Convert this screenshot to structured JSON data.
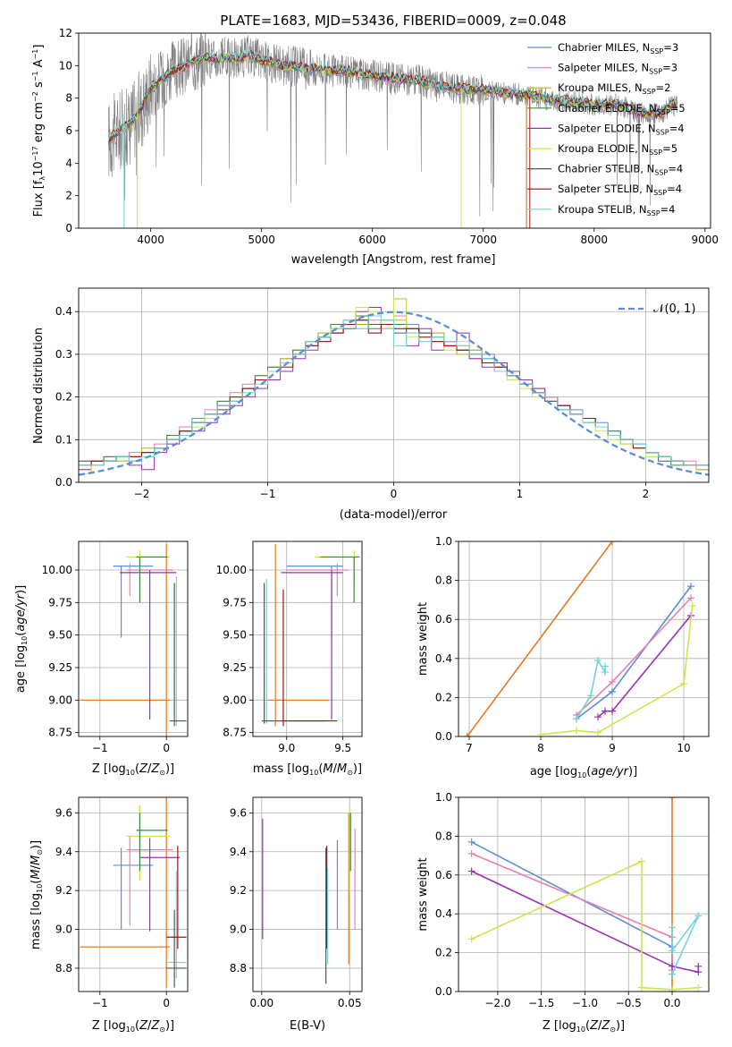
{
  "title": "PLATE=1683, MJD=53436, FIBERID=0009, z=0.048",
  "colors": {
    "Chabrier MILES": "#5b8ed6",
    "Salpeter MILES": "#e87fb0",
    "Kroupa MILES": "#b5b520",
    "Chabrier ELODIE": "#3a8a3a",
    "Salpeter ELODIE": "#9b2fb5",
    "Kroupa ELODIE": "#c8e84a",
    "Chabrier STELIB": "#555555",
    "Salpeter STELIB": "#a01010",
    "Kroupa STELIB": "#6fd6d6",
    "data": "#808080",
    "orange": "#e07b20"
  },
  "chart_data": [
    {
      "type": "line",
      "title": "PLATE=1683, MJD=53436, FIBERID=0009, z=0.048",
      "xlabel": "wavelength [Angstrom, rest frame]",
      "ylabel": "Flux [f_λ 10^-17 erg cm^-2 s^-1 A^-1]",
      "xlim": [
        3350,
        9050
      ],
      "ylim": [
        0,
        12
      ],
      "xticks": [
        "4000",
        "5000",
        "6000",
        "7000",
        "8000",
        "9000"
      ],
      "yticks": [
        "0",
        "2",
        "4",
        "6",
        "8",
        "10",
        "12"
      ],
      "legend_position": "top-right",
      "legend": [
        {
          "label": "Chabrier MILES, N",
          "sub": "SSP",
          "suffix": "=3"
        },
        {
          "label": "Salpeter MILES, N",
          "sub": "SSP",
          "suffix": "=3"
        },
        {
          "label": "Kroupa MILES, N",
          "sub": "SSP",
          "suffix": "=2"
        },
        {
          "label": "Chabrier ELODIE, N",
          "sub": "SSP",
          "suffix": "=5"
        },
        {
          "label": "Salpeter ELODIE, N",
          "sub": "SSP",
          "suffix": "=4"
        },
        {
          "label": "Kroupa ELODIE, N",
          "sub": "SSP",
          "suffix": "=5"
        },
        {
          "label": "Chabrier STELIB, N",
          "sub": "SSP",
          "suffix": "=4"
        },
        {
          "label": "Salpeter STELIB, N",
          "sub": "SSP",
          "suffix": "=4"
        },
        {
          "label": "Kroupa STELIB, N",
          "sub": "SSP",
          "suffix": "=4"
        }
      ],
      "model_continuum": [
        [
          3620,
          5.4
        ],
        [
          3700,
          5.9
        ],
        [
          3800,
          6.3
        ],
        [
          3900,
          7.2
        ],
        [
          4000,
          8.6
        ],
        [
          4100,
          9.2
        ],
        [
          4200,
          9.7
        ],
        [
          4300,
          9.9
        ],
        [
          4400,
          10.3
        ],
        [
          4500,
          10.5
        ],
        [
          4600,
          10.4
        ],
        [
          4700,
          10.5
        ],
        [
          4800,
          10.4
        ],
        [
          4900,
          10.7
        ],
        [
          5000,
          10.3
        ],
        [
          5100,
          10.2
        ],
        [
          5200,
          9.9
        ],
        [
          5300,
          10.0
        ],
        [
          5400,
          9.8
        ],
        [
          5500,
          9.9
        ],
        [
          5600,
          9.7
        ],
        [
          5800,
          9.6
        ],
        [
          6000,
          9.4
        ],
        [
          6200,
          9.2
        ],
        [
          6400,
          9.1
        ],
        [
          6600,
          8.7
        ],
        [
          6800,
          8.6
        ],
        [
          7000,
          8.5
        ],
        [
          7200,
          8.3
        ],
        [
          7400,
          8.2
        ],
        [
          7600,
          7.9
        ],
        [
          7800,
          7.8
        ],
        [
          8000,
          7.6
        ],
        [
          8200,
          7.6
        ],
        [
          8400,
          7.1
        ],
        [
          8600,
          7.0
        ],
        [
          8700,
          7.6
        ]
      ]
    },
    {
      "type": "step",
      "xlabel": "(data-model)/error",
      "ylabel": "Normed distribution",
      "xlim": [
        -2.5,
        2.5
      ],
      "ylim": [
        0,
        0.455
      ],
      "xticks": [
        "−2",
        "−1",
        "0",
        "1",
        "2"
      ],
      "yticks": [
        "0.0",
        "0.1",
        "0.2",
        "0.3",
        "0.4"
      ],
      "legend": "𝒩(0, 1)",
      "legend_position": "top-right",
      "bins_start": -2.5,
      "bin_width": 0.1,
      "series_values": [
        [
          0.04,
          0.04,
          0.06,
          0.06,
          0.05,
          0.07,
          0.08,
          0.1,
          0.12,
          0.15,
          0.16,
          0.18,
          0.2,
          0.22,
          0.24,
          0.26,
          0.28,
          0.3,
          0.33,
          0.34,
          0.36,
          0.37,
          0.38,
          0.35,
          0.37,
          0.36,
          0.37,
          0.35,
          0.34,
          0.33,
          0.32,
          0.31,
          0.3,
          0.27,
          0.26,
          0.24,
          0.22,
          0.2,
          0.18,
          0.17,
          0.15,
          0.14,
          0.12,
          0.1,
          0.09,
          0.07,
          0.06,
          0.05,
          0.04,
          0.04
        ],
        [
          0.05,
          0.05,
          0.05,
          0.06,
          0.07,
          0.07,
          0.09,
          0.11,
          0.13,
          0.14,
          0.17,
          0.19,
          0.21,
          0.23,
          0.25,
          0.27,
          0.29,
          0.31,
          0.32,
          0.35,
          0.37,
          0.38,
          0.36,
          0.38,
          0.36,
          0.39,
          0.36,
          0.33,
          0.35,
          0.32,
          0.31,
          0.29,
          0.28,
          0.28,
          0.25,
          0.23,
          0.21,
          0.19,
          0.18,
          0.16,
          0.14,
          0.13,
          0.11,
          0.1,
          0.08,
          0.07,
          0.06,
          0.05,
          0.05,
          0.03
        ],
        [
          0.03,
          0.05,
          0.05,
          0.05,
          0.06,
          0.08,
          0.08,
          0.1,
          0.12,
          0.14,
          0.16,
          0.18,
          0.19,
          0.22,
          0.24,
          0.27,
          0.29,
          0.3,
          0.33,
          0.35,
          0.36,
          0.38,
          0.37,
          0.37,
          0.37,
          0.38,
          0.35,
          0.34,
          0.35,
          0.33,
          0.3,
          0.31,
          0.29,
          0.27,
          0.25,
          0.23,
          0.21,
          0.2,
          0.17,
          0.16,
          0.15,
          0.13,
          0.11,
          0.1,
          0.08,
          0.07,
          0.06,
          0.05,
          0.04,
          0.04
        ],
        [
          0.04,
          0.05,
          0.06,
          0.05,
          0.06,
          0.07,
          0.08,
          0.11,
          0.12,
          0.14,
          0.16,
          0.19,
          0.2,
          0.22,
          0.25,
          0.27,
          0.28,
          0.31,
          0.33,
          0.34,
          0.37,
          0.37,
          0.39,
          0.36,
          0.38,
          0.37,
          0.36,
          0.35,
          0.34,
          0.32,
          0.31,
          0.3,
          0.28,
          0.26,
          0.26,
          0.23,
          0.21,
          0.19,
          0.18,
          0.16,
          0.14,
          0.13,
          0.12,
          0.1,
          0.08,
          0.07,
          0.06,
          0.04,
          0.04,
          0.03
        ],
        [
          0.03,
          0.04,
          0.05,
          0.06,
          0.04,
          0.03,
          0.07,
          0.09,
          0.11,
          0.12,
          0.14,
          0.16,
          0.18,
          0.2,
          0.22,
          0.24,
          0.26,
          0.29,
          0.31,
          0.33,
          0.35,
          0.37,
          0.4,
          0.41,
          0.36,
          0.43,
          0.32,
          0.36,
          0.31,
          0.33,
          0.35,
          0.29,
          0.27,
          0.28,
          0.26,
          0.24,
          0.22,
          0.2,
          0.18,
          0.16,
          0.15,
          0.13,
          0.11,
          0.09,
          0.08,
          0.07,
          0.06,
          0.05,
          0.04,
          0.03
        ],
        [
          0.02,
          0.04,
          0.05,
          0.05,
          0.06,
          0.06,
          0.08,
          0.1,
          0.11,
          0.13,
          0.15,
          0.17,
          0.2,
          0.21,
          0.24,
          0.26,
          0.28,
          0.3,
          0.32,
          0.34,
          0.36,
          0.38,
          0.41,
          0.4,
          0.36,
          0.43,
          0.34,
          0.34,
          0.33,
          0.31,
          0.33,
          0.3,
          0.29,
          0.27,
          0.24,
          0.22,
          0.2,
          0.19,
          0.17,
          0.16,
          0.14,
          0.12,
          0.1,
          0.09,
          0.08,
          0.06,
          0.06,
          0.05,
          0.04,
          0.03
        ],
        [
          0.05,
          0.05,
          0.05,
          0.06,
          0.06,
          0.07,
          0.08,
          0.1,
          0.12,
          0.14,
          0.16,
          0.17,
          0.19,
          0.22,
          0.24,
          0.26,
          0.28,
          0.3,
          0.32,
          0.34,
          0.35,
          0.36,
          0.38,
          0.37,
          0.37,
          0.35,
          0.36,
          0.35,
          0.33,
          0.32,
          0.31,
          0.3,
          0.29,
          0.27,
          0.25,
          0.23,
          0.21,
          0.19,
          0.17,
          0.16,
          0.15,
          0.13,
          0.11,
          0.1,
          0.09,
          0.07,
          0.05,
          0.05,
          0.04,
          0.04
        ],
        [
          0.04,
          0.05,
          0.05,
          0.06,
          0.06,
          0.07,
          0.08,
          0.1,
          0.12,
          0.14,
          0.16,
          0.18,
          0.2,
          0.22,
          0.24,
          0.26,
          0.27,
          0.3,
          0.32,
          0.33,
          0.35,
          0.37,
          0.38,
          0.35,
          0.37,
          0.36,
          0.36,
          0.34,
          0.33,
          0.32,
          0.31,
          0.3,
          0.28,
          0.27,
          0.25,
          0.23,
          0.21,
          0.2,
          0.18,
          0.16,
          0.15,
          0.13,
          0.11,
          0.1,
          0.08,
          0.07,
          0.06,
          0.05,
          0.04,
          0.04
        ],
        [
          0.04,
          0.04,
          0.05,
          0.06,
          0.05,
          0.06,
          0.08,
          0.1,
          0.11,
          0.14,
          0.16,
          0.18,
          0.19,
          0.21,
          0.23,
          0.26,
          0.28,
          0.3,
          0.33,
          0.34,
          0.36,
          0.38,
          0.36,
          0.39,
          0.38,
          0.32,
          0.35,
          0.33,
          0.34,
          0.33,
          0.32,
          0.3,
          0.29,
          0.26,
          0.25,
          0.23,
          0.21,
          0.2,
          0.17,
          0.16,
          0.14,
          0.13,
          0.11,
          0.1,
          0.09,
          0.07,
          0.06,
          0.05,
          0.04,
          0.04
        ]
      ]
    },
    {
      "type": "errorbar",
      "xlabel": "Z [log10(Z/Z⊙)]",
      "ylabel": "age [log10(age/yr)]",
      "xlim": [
        -1.32,
        0.32
      ],
      "ylim": [
        8.72,
        10.22
      ],
      "xticks": [
        "−1",
        "0"
      ],
      "yticks": [
        "8.75",
        "9.00",
        "9.25",
        "9.50",
        "9.75",
        "10.00"
      ]
    },
    {
      "type": "errorbar",
      "xlabel": "mass [log10(M/M⊙)]",
      "xlim": [
        8.7,
        9.67
      ],
      "ylim": [
        8.72,
        10.22
      ],
      "xticks": [
        "9.0",
        "9.5"
      ],
      "yticks": [
        "8.75",
        "9.00",
        "9.25",
        "9.50",
        "9.75",
        "10.00"
      ]
    },
    {
      "type": "line",
      "xlabel": "age [log10(age/yr)]",
      "ylabel": "mass weight",
      "xlim": [
        6.85,
        10.35
      ],
      "ylim": [
        0,
        1
      ],
      "xticks": [
        "7",
        "8",
        "9",
        "10"
      ],
      "yticks": [
        "0.0",
        "0.2",
        "0.4",
        "0.6",
        "0.8",
        "1.0"
      ],
      "series": [
        {
          "color": "orange",
          "points": [
            [
              6.97,
              0.0
            ],
            [
              9.0,
              1.0
            ]
          ]
        },
        {
          "color": "Chabrier MILES",
          "points": [
            [
              8.5,
              0.09
            ],
            [
              9.0,
              0.23
            ],
            [
              10.1,
              0.77
            ]
          ]
        },
        {
          "color": "Salpeter MILES",
          "points": [
            [
              8.5,
              0.11
            ],
            [
              9.0,
              0.28
            ],
            [
              10.1,
              0.71
            ]
          ]
        },
        {
          "color": "Salpeter ELODIE",
          "points": [
            [
              8.8,
              0.1
            ],
            [
              8.9,
              0.13
            ],
            [
              9.0,
              0.13
            ],
            [
              10.1,
              0.62
            ]
          ]
        },
        {
          "color": "Kroupa ELODIE",
          "points": [
            [
              8.0,
              0.01
            ],
            [
              8.5,
              0.03
            ],
            [
              8.8,
              0.02
            ],
            [
              10.0,
              0.27
            ],
            [
              10.12,
              0.67
            ]
          ]
        },
        {
          "color": "Kroupa STELIB",
          "points": [
            [
              8.5,
              0.09
            ],
            [
              8.7,
              0.21
            ],
            [
              8.8,
              0.39
            ],
            [
              8.9,
              0.33
            ],
            [
              8.9,
              0.36
            ]
          ]
        }
      ]
    },
    {
      "type": "errorbar",
      "xlabel": "Z [log10(Z/Z⊙)]",
      "ylabel": "mass [log10(M/M⊙)]",
      "xlim": [
        -1.32,
        0.32
      ],
      "ylim": [
        8.68,
        9.68
      ],
      "xticks": [
        "−1",
        "0"
      ],
      "yticks": [
        "8.8",
        "9.0",
        "9.2",
        "9.4",
        "9.6"
      ]
    },
    {
      "type": "errorbar",
      "xlabel": "E(B-V)",
      "xlim": [
        -0.005,
        0.057
      ],
      "ylim": [
        8.68,
        9.68
      ],
      "xticks": [
        "0.00",
        "0.05"
      ],
      "yticks": [
        "8.8",
        "9.0",
        "9.2",
        "9.4",
        "9.6"
      ]
    },
    {
      "type": "line",
      "xlabel": "Z [log10(Z/Z⊙)]",
      "ylabel": "mass weight",
      "xlim": [
        -2.45,
        0.42
      ],
      "ylim": [
        0,
        1
      ],
      "xticks": [
        "−2.0",
        "−1.5",
        "−1.0",
        "−0.5",
        "0.0"
      ],
      "yticks": [
        "0.0",
        "0.2",
        "0.4",
        "0.6",
        "0.8",
        "1.0"
      ],
      "series": [
        {
          "color": "orange",
          "points": [
            [
              0.0,
              0.0
            ],
            [
              0.0,
              1.0
            ]
          ]
        },
        {
          "color": "Chabrier MILES",
          "points": [
            [
              -2.3,
              0.77
            ],
            [
              0.0,
              0.23
            ],
            [
              0.0,
              0.09
            ]
          ]
        },
        {
          "color": "Salpeter MILES",
          "points": [
            [
              -2.3,
              0.71
            ],
            [
              0.0,
              0.28
            ],
            [
              0.0,
              0.11
            ]
          ]
        },
        {
          "color": "Salpeter ELODIE",
          "points": [
            [
              -2.3,
              0.62
            ],
            [
              0.0,
              0.13
            ],
            [
              0.3,
              0.1
            ],
            [
              0.3,
              0.13
            ]
          ]
        },
        {
          "color": "Kroupa ELODIE",
          "points": [
            [
              -2.3,
              0.27
            ],
            [
              -0.35,
              0.67
            ],
            [
              -0.35,
              0.02
            ],
            [
              0.0,
              0.01
            ],
            [
              0.3,
              0.02
            ]
          ]
        },
        {
          "color": "Kroupa STELIB",
          "points": [
            [
              0.0,
              0.33
            ],
            [
              0.0,
              0.21
            ],
            [
              0.3,
              0.39
            ],
            [
              0.0,
              0.09
            ]
          ]
        }
      ]
    }
  ]
}
